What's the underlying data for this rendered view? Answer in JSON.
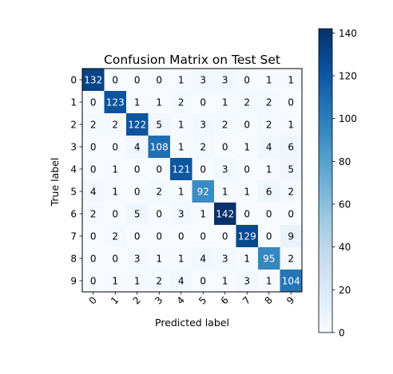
{
  "chart_data": {
    "type": "heatmap",
    "title": "Confusion Matrix on Test Set",
    "xlabel": "Predicted label",
    "ylabel": "True label",
    "x_ticks": [
      "0",
      "1",
      "2",
      "3",
      "4",
      "5",
      "6",
      "7",
      "8",
      "9"
    ],
    "y_ticks": [
      "0",
      "1",
      "2",
      "3",
      "4",
      "5",
      "6",
      "7",
      "8",
      "9"
    ],
    "matrix": [
      [
        132,
        0,
        0,
        0,
        1,
        3,
        3,
        0,
        1,
        1
      ],
      [
        0,
        123,
        1,
        1,
        2,
        0,
        1,
        2,
        2,
        0
      ],
      [
        2,
        2,
        122,
        5,
        1,
        3,
        2,
        0,
        2,
        1
      ],
      [
        0,
        0,
        4,
        108,
        1,
        2,
        0,
        1,
        4,
        6
      ],
      [
        0,
        1,
        0,
        0,
        121,
        0,
        3,
        0,
        1,
        5
      ],
      [
        4,
        1,
        0,
        2,
        1,
        92,
        1,
        1,
        6,
        2
      ],
      [
        2,
        0,
        5,
        0,
        3,
        1,
        142,
        0,
        0,
        0
      ],
      [
        0,
        2,
        0,
        0,
        0,
        0,
        0,
        129,
        0,
        9
      ],
      [
        0,
        0,
        3,
        1,
        1,
        4,
        3,
        1,
        95,
        2
      ],
      [
        0,
        1,
        1,
        2,
        4,
        0,
        1,
        3,
        1,
        104
      ]
    ],
    "colormap": "Blues",
    "value_range": [
      0,
      142
    ],
    "colorbar_ticks": [
      0,
      20,
      40,
      60,
      80,
      100,
      120,
      140
    ],
    "text_color_dark": "#000000",
    "text_color_light": "#ffffff"
  }
}
